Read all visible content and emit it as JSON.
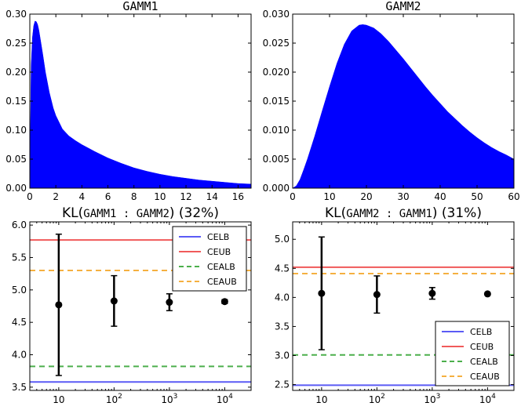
{
  "chart_data": [
    {
      "type": "area",
      "title": "GAMM1",
      "color": "#0000ff",
      "xlim": [
        0,
        17
      ],
      "ylim": [
        0,
        0.3
      ],
      "xticks": [
        0,
        2,
        4,
        6,
        8,
        10,
        12,
        14,
        16
      ],
      "xtick_labels": [
        "0",
        "2",
        "4",
        "6",
        "8",
        "10",
        "12",
        "14",
        "16"
      ],
      "yticks": [
        0,
        0.05,
        0.1,
        0.15,
        0.2,
        0.25,
        0.3
      ],
      "ytick_labels": [
        "0.00",
        "0.05",
        "0.10",
        "0.15",
        "0.20",
        "0.25",
        "0.30"
      ],
      "x": [
        0,
        0.1,
        0.2,
        0.3,
        0.4,
        0.5,
        0.6,
        0.7,
        0.8,
        1.0,
        1.2,
        1.5,
        1.8,
        2.0,
        2.5,
        3.0,
        3.5,
        4.0,
        5.0,
        6.0,
        7.0,
        8.0,
        9.0,
        10.0,
        11.0,
        12.0,
        13.0,
        14.0,
        15.0,
        16.0,
        17.0
      ],
      "y": [
        0.0,
        0.21,
        0.26,
        0.28,
        0.288,
        0.287,
        0.282,
        0.272,
        0.258,
        0.23,
        0.2,
        0.165,
        0.138,
        0.125,
        0.102,
        0.09,
        0.082,
        0.075,
        0.063,
        0.052,
        0.043,
        0.035,
        0.029,
        0.024,
        0.02,
        0.017,
        0.014,
        0.012,
        0.01,
        0.008,
        0.007
      ]
    },
    {
      "type": "area",
      "title": "GAMM2",
      "color": "#0000ff",
      "xlim": [
        0,
        60
      ],
      "ylim": [
        0,
        0.03
      ],
      "xticks": [
        0,
        10,
        20,
        30,
        40,
        50,
        60
      ],
      "xtick_labels": [
        "0",
        "10",
        "20",
        "30",
        "40",
        "50",
        "60"
      ],
      "yticks": [
        0,
        0.005,
        0.01,
        0.015,
        0.02,
        0.025,
        0.03
      ],
      "ytick_labels": [
        "0.000",
        "0.005",
        "0.010",
        "0.015",
        "0.020",
        "0.025",
        "0.030"
      ],
      "x": [
        0,
        1,
        2,
        3,
        4,
        5,
        6,
        8,
        10,
        12,
        14,
        16,
        18,
        19,
        20,
        22,
        24,
        26,
        28,
        30,
        32,
        34,
        36,
        38,
        40,
        42,
        44,
        46,
        48,
        50,
        52,
        54,
        56,
        58,
        60
      ],
      "y": [
        0.0,
        0.0004,
        0.0015,
        0.0032,
        0.005,
        0.007,
        0.009,
        0.0133,
        0.0175,
        0.0215,
        0.0248,
        0.0271,
        0.0281,
        0.0282,
        0.0281,
        0.0276,
        0.0266,
        0.0253,
        0.0238,
        0.0223,
        0.0207,
        0.0191,
        0.0175,
        0.016,
        0.0146,
        0.0132,
        0.012,
        0.0108,
        0.0097,
        0.0087,
        0.0078,
        0.007,
        0.0063,
        0.0057,
        0.005
      ]
    },
    {
      "type": "errorbar",
      "title": "KL(GAMM1 : GAMM2) (32%)",
      "title_prefix": "KL(",
      "title_mono": "GAMM1 : GAMM2",
      "title_suffix": ") (32%)",
      "xscale": "log",
      "xlim": [
        3,
        30000
      ],
      "ylim": [
        3.45,
        6.05
      ],
      "xticks": [
        10,
        100,
        1000,
        10000
      ],
      "xtick_labels": [
        "10",
        "10",
        "10",
        "10"
      ],
      "xtick_exponents": [
        "",
        "2",
        "3",
        "4"
      ],
      "yticks": [
        3.5,
        4.0,
        4.5,
        5.0,
        5.5,
        6.0
      ],
      "ytick_labels": [
        "3.5",
        "4.0",
        "4.5",
        "5.0",
        "5.5",
        "6.0"
      ],
      "points": [
        {
          "x": 10,
          "y": 4.77,
          "ylow": 3.68,
          "yhigh": 5.86
        },
        {
          "x": 100,
          "y": 4.83,
          "ylow": 4.44,
          "yhigh": 5.22
        },
        {
          "x": 1000,
          "y": 4.81,
          "ylow": 4.68,
          "yhigh": 4.94
        },
        {
          "x": 10000,
          "y": 4.82,
          "ylow": 4.79,
          "yhigh": 4.85
        }
      ],
      "hlines": [
        {
          "name": "CELB",
          "y": 3.58,
          "color": "#5b5bf5",
          "style": "solid"
        },
        {
          "name": "CEUB",
          "y": 5.77,
          "color": "#f05a5a",
          "style": "solid"
        },
        {
          "name": "CEALB",
          "y": 3.82,
          "color": "#4caf4c",
          "style": "dashed"
        },
        {
          "name": "CEAUB",
          "y": 5.3,
          "color": "#f5b040",
          "style": "dashed"
        }
      ],
      "legend": {
        "loc": "upper-right",
        "entries": [
          "CELB",
          "CEUB",
          "CEALB",
          "CEAUB"
        ]
      }
    },
    {
      "type": "errorbar",
      "title": "KL(GAMM2 : GAMM1) (31%)",
      "title_prefix": "KL(",
      "title_mono": "GAMM2 : GAMM1",
      "title_suffix": ") (31%)",
      "xscale": "log",
      "xlim": [
        3,
        30000
      ],
      "ylim": [
        2.4,
        5.3
      ],
      "xticks": [
        10,
        100,
        1000,
        10000
      ],
      "xtick_labels": [
        "10",
        "10",
        "10",
        "10"
      ],
      "xtick_exponents": [
        "",
        "2",
        "3",
        "4"
      ],
      "yticks": [
        2.5,
        3.0,
        3.5,
        4.0,
        4.5,
        5.0
      ],
      "ytick_labels": [
        "2.5",
        "3.0",
        "3.5",
        "4.0",
        "4.5",
        "5.0"
      ],
      "points": [
        {
          "x": 10,
          "y": 4.07,
          "ylow": 3.1,
          "yhigh": 5.04
        },
        {
          "x": 100,
          "y": 4.05,
          "ylow": 3.73,
          "yhigh": 4.37
        },
        {
          "x": 1000,
          "y": 4.07,
          "ylow": 3.97,
          "yhigh": 4.17
        },
        {
          "x": 10000,
          "y": 4.06,
          "ylow": 4.04,
          "yhigh": 4.08
        }
      ],
      "hlines": [
        {
          "name": "CELB",
          "y": 2.49,
          "color": "#5b5bf5",
          "style": "solid"
        },
        {
          "name": "CEUB",
          "y": 4.52,
          "color": "#f05a5a",
          "style": "solid"
        },
        {
          "name": "CEALB",
          "y": 3.01,
          "color": "#4caf4c",
          "style": "dashed"
        },
        {
          "name": "CEAUB",
          "y": 4.41,
          "color": "#f5b040",
          "style": "dashed"
        }
      ],
      "legend": {
        "loc": "lower-right",
        "entries": [
          "CELB",
          "CEUB",
          "CEALB",
          "CEAUB"
        ]
      }
    }
  ]
}
